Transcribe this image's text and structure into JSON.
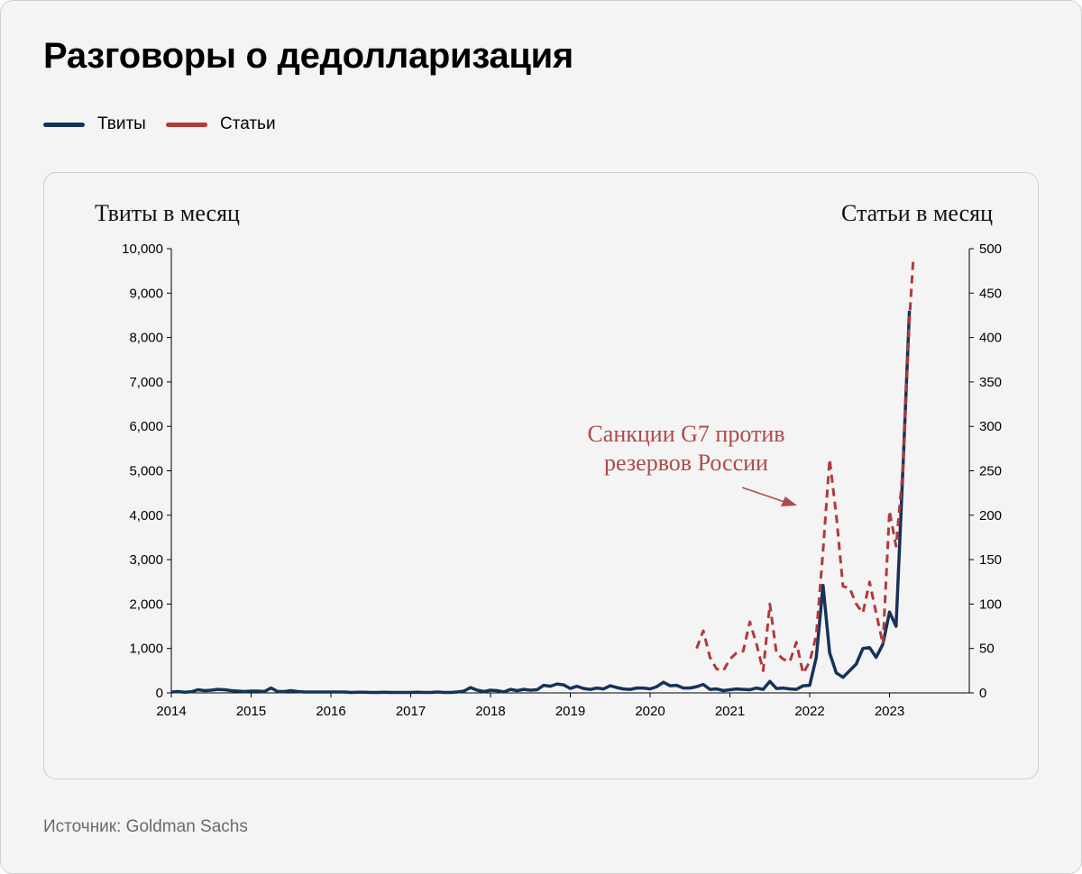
{
  "title": "Разговоры о дедолларизация",
  "legend": {
    "tweets_label": "Твиты",
    "articles_label": "Статьи"
  },
  "source": "Источник: Goldman Sachs",
  "colors": {
    "tweets": "#15335a",
    "articles": "#b13a3a",
    "annotation": "#b04a4a"
  },
  "chart_data": {
    "type": "line",
    "title": "Разговоры о дедолларизация",
    "ylabel_left": "Твиты в месяц",
    "ylabel_right": "Статьи в месяц",
    "x_range": [
      2014,
      2024
    ],
    "x_ticks": [
      "2014",
      "2015",
      "2016",
      "2017",
      "2018",
      "2019",
      "2020",
      "2021",
      "2022",
      "2023"
    ],
    "y_left": {
      "range": [
        0,
        10000
      ],
      "ticks": [
        "0",
        "1,000",
        "2,000",
        "3,000",
        "4,000",
        "5,000",
        "6,000",
        "7,000",
        "8,000",
        "9,000",
        "10,000"
      ]
    },
    "y_right": {
      "range": [
        0,
        500
      ],
      "ticks": [
        "0",
        "50",
        "100",
        "150",
        "200",
        "250",
        "300",
        "350",
        "400",
        "450",
        "500"
      ]
    },
    "annotation": {
      "line1": "Санкции G7 против",
      "line2": "резервов России"
    },
    "series": [
      {
        "name": "Твиты",
        "axis": "left",
        "style": "solid",
        "x": [
          2014.0,
          2014.083,
          2014.167,
          2014.25,
          2014.333,
          2014.417,
          2014.5,
          2014.583,
          2014.667,
          2014.75,
          2014.833,
          2014.917,
          2015.0,
          2015.083,
          2015.167,
          2015.25,
          2015.333,
          2015.417,
          2015.5,
          2015.583,
          2015.667,
          2015.75,
          2015.833,
          2015.917,
          2016.0,
          2016.083,
          2016.167,
          2016.25,
          2016.333,
          2016.417,
          2016.5,
          2016.583,
          2016.667,
          2016.75,
          2016.833,
          2016.917,
          2017.0,
          2017.083,
          2017.167,
          2017.25,
          2017.333,
          2017.417,
          2017.5,
          2017.583,
          2017.667,
          2017.75,
          2017.833,
          2017.917,
          2018.0,
          2018.083,
          2018.167,
          2018.25,
          2018.333,
          2018.417,
          2018.5,
          2018.583,
          2018.667,
          2018.75,
          2018.833,
          2018.917,
          2019.0,
          2019.083,
          2019.167,
          2019.25,
          2019.333,
          2019.417,
          2019.5,
          2019.583,
          2019.667,
          2019.75,
          2019.833,
          2019.917,
          2020.0,
          2020.083,
          2020.167,
          2020.25,
          2020.333,
          2020.417,
          2020.5,
          2020.583,
          2020.667,
          2020.75,
          2020.833,
          2020.917,
          2021.0,
          2021.083,
          2021.167,
          2021.25,
          2021.333,
          2021.417,
          2021.5,
          2021.583,
          2021.667,
          2021.75,
          2021.833,
          2021.917,
          2022.0,
          2022.083,
          2022.167,
          2022.25,
          2022.333,
          2022.417,
          2022.5,
          2022.583,
          2022.667,
          2022.75,
          2022.833,
          2022.917,
          2023.0,
          2023.083,
          2023.167,
          2023.25
        ],
        "values": [
          20,
          30,
          15,
          25,
          70,
          50,
          60,
          80,
          70,
          50,
          40,
          30,
          40,
          40,
          30,
          110,
          30,
          30,
          50,
          30,
          20,
          20,
          20,
          20,
          20,
          20,
          20,
          10,
          15,
          15,
          10,
          10,
          15,
          10,
          10,
          10,
          10,
          15,
          10,
          10,
          20,
          10,
          10,
          20,
          40,
          120,
          60,
          30,
          60,
          50,
          20,
          80,
          50,
          80,
          60,
          70,
          170,
          150,
          200,
          180,
          100,
          150,
          100,
          80,
          110,
          90,
          160,
          120,
          90,
          80,
          110,
          110,
          90,
          140,
          240,
          160,
          170,
          110,
          110,
          140,
          190,
          80,
          90,
          50,
          70,
          90,
          80,
          70,
          110,
          80,
          260,
          100,
          110,
          90,
          80,
          160,
          170,
          800,
          2420,
          900,
          450,
          350,
          500,
          650,
          1000,
          1020,
          800,
          1100,
          1820,
          1500,
          5000,
          8600
        ]
      },
      {
        "name": "Статьи",
        "axis": "right",
        "style": "dashed",
        "x": [
          2020.583,
          2020.667,
          2020.75,
          2020.833,
          2020.917,
          2021.0,
          2021.083,
          2021.167,
          2021.25,
          2021.333,
          2021.417,
          2021.5,
          2021.583,
          2021.667,
          2021.75,
          2021.833,
          2021.917,
          2022.0,
          2022.083,
          2022.167,
          2022.25,
          2022.333,
          2022.417,
          2022.5,
          2022.583,
          2022.667,
          2022.75,
          2022.833,
          2022.917,
          2023.0,
          2023.083,
          2023.167,
          2023.25,
          2023.3
        ],
        "values": [
          50,
          70,
          40,
          27,
          25,
          38,
          45,
          47,
          80,
          55,
          25,
          100,
          45,
          38,
          35,
          57,
          22,
          35,
          65,
          160,
          263,
          200,
          120,
          118,
          100,
          90,
          125,
          90,
          55,
          205,
          165,
          250,
          420,
          490
        ]
      }
    ]
  }
}
